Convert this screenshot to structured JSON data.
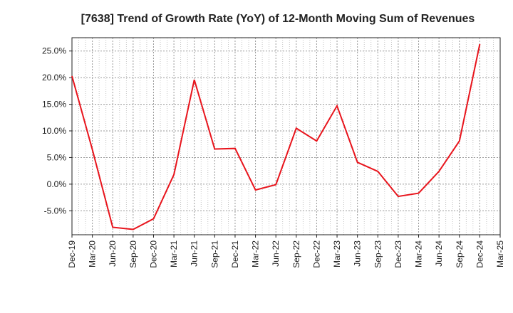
{
  "chart_data": {
    "type": "line",
    "title": "[7638]  Trend of Growth Rate (YoY) of 12-Month Moving Sum of Revenues",
    "xlabel": "",
    "ylabel": "",
    "x": [
      "Dec-19",
      "Mar-20",
      "Jun-20",
      "Sep-20",
      "Dec-20",
      "Mar-21",
      "Jun-21",
      "Sep-21",
      "Dec-21",
      "Mar-22",
      "Jun-22",
      "Sep-22",
      "Dec-22",
      "Mar-23",
      "Jun-23",
      "Sep-23",
      "Dec-23",
      "Mar-24",
      "Jun-24",
      "Sep-24",
      "Dec-24",
      "Mar-25"
    ],
    "y_tick_values": [
      -5,
      0,
      5,
      10,
      15,
      20,
      25
    ],
    "y_tick_labels": [
      "-5.0%",
      "0.0%",
      "5.0%",
      "10.0%",
      "15.0%",
      "20.0%",
      "25.0%"
    ],
    "ylim": [
      -9.5,
      27.5
    ],
    "grid": true,
    "series": [
      {
        "color": "#e8141c",
        "values": [
          20.3,
          6.5,
          -8.1,
          -8.5,
          -6.5,
          1.8,
          19.6,
          6.6,
          6.7,
          -1.1,
          -0.1,
          10.5,
          8.1,
          14.7,
          4.1,
          2.4,
          -2.3,
          -1.7,
          2.4,
          8.1,
          26.3,
          null
        ]
      }
    ]
  }
}
